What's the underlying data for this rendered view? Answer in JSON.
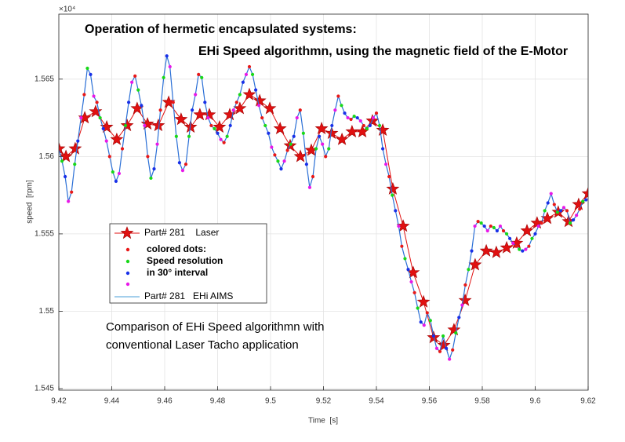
{
  "chart_data": {
    "type": "line",
    "title": "Operation of hermetic encapsulated systems:",
    "subtitle": "EHi Speed algorithmn, using the magnetic field of the E-Motor",
    "annotation": [
      "Comparison of EHi Speed algorithmn with",
      "conventional Laser Tacho application"
    ],
    "x_label": "Time  [s]",
    "y_label": "speed  [rpm]",
    "y_exponent": "×10⁴",
    "xlim": [
      9.42,
      9.62
    ],
    "xticks": [
      9.42,
      9.44,
      9.46,
      9.48,
      9.5,
      9.52,
      9.54,
      9.56,
      9.58,
      9.6,
      9.62
    ],
    "ylim": [
      1.5449,
      1.5692
    ],
    "yticks": [
      1.545,
      1.55,
      1.555,
      1.56,
      1.565
    ],
    "grid": true,
    "legend": "west",
    "legend_note": [
      "colored dots:",
      "Speed resolution",
      "in 30° interval"
    ],
    "series": [
      {
        "name": "Part# 281    Laser",
        "color": "#e01010",
        "marker": "star",
        "x": [
          9.42,
          9.4227,
          9.4262,
          9.4298,
          9.4339,
          9.4381,
          9.4419,
          9.4458,
          9.4496,
          9.4535,
          9.4576,
          9.4615,
          9.4662,
          9.4698,
          9.4733,
          9.4769,
          9.4807,
          9.4846,
          9.4884,
          9.492,
          9.4959,
          9.4997,
          9.5036,
          9.5074,
          9.5113,
          9.5154,
          9.5193,
          9.5231,
          9.527,
          9.5308,
          9.5347,
          9.5385,
          9.5424,
          9.5462,
          9.5501,
          9.5539,
          9.5578,
          9.5616,
          9.5655,
          9.5693,
          9.5735,
          9.5773,
          9.5815,
          9.5853,
          9.5892,
          9.593,
          9.5969,
          9.6007,
          9.6046,
          9.6087,
          9.6126,
          9.6164,
          9.62
        ],
        "values": [
          1.5605,
          1.56,
          1.5605,
          1.5625,
          1.5629,
          1.5619,
          1.5611,
          1.562,
          1.5631,
          1.5621,
          1.562,
          1.5635,
          1.5624,
          1.5619,
          1.5627,
          1.5627,
          1.5619,
          1.5627,
          1.5631,
          1.564,
          1.5636,
          1.5631,
          1.5618,
          1.5607,
          1.56,
          1.5604,
          1.5618,
          1.5615,
          1.5611,
          1.5616,
          1.5616,
          1.5623,
          1.5617,
          1.5579,
          1.5555,
          1.5525,
          1.5506,
          1.5483,
          1.5478,
          1.5488,
          1.5507,
          1.553,
          1.5539,
          1.5538,
          1.5541,
          1.5544,
          1.5552,
          1.5557,
          1.556,
          1.5564,
          1.5558,
          1.5569,
          1.5576
        ]
      },
      {
        "name": "Part# 281   EHi AIMS",
        "color": "#2a6fd6",
        "legend_color": "#4a9fd8",
        "marker": "dot",
        "dot_colors": [
          "#e81818",
          "#18d818",
          "#1830e8",
          "#e818e8"
        ],
        "x": [
          9.42,
          9.4212,
          9.4224,
          9.4236,
          9.4248,
          9.426,
          9.4272,
          9.4284,
          9.4296,
          9.4308,
          9.432,
          9.4332,
          9.4344,
          9.4356,
          9.4368,
          9.438,
          9.4392,
          9.4404,
          9.4416,
          9.4428,
          9.444,
          9.4452,
          9.4464,
          9.4476,
          9.4488,
          9.45,
          9.4512,
          9.4524,
          9.4536,
          9.4548,
          9.456,
          9.4572,
          9.4584,
          9.4596,
          9.4608,
          9.462,
          9.4632,
          9.4644,
          9.4656,
          9.4668,
          9.468,
          9.4692,
          9.4704,
          9.4716,
          9.4728,
          9.474,
          9.4752,
          9.4764,
          9.4776,
          9.4788,
          9.48,
          9.4812,
          9.4824,
          9.4836,
          9.4848,
          9.486,
          9.4872,
          9.4884,
          9.4896,
          9.4908,
          9.492,
          9.4932,
          9.4944,
          9.4956,
          9.4968,
          9.498,
          9.4992,
          9.5004,
          9.5016,
          9.5028,
          9.504,
          9.5052,
          9.5064,
          9.5076,
          9.5088,
          9.51,
          9.5112,
          9.5124,
          9.5136,
          9.5148,
          9.516,
          9.5172,
          9.5184,
          9.5196,
          9.5208,
          9.522,
          9.5232,
          9.5244,
          9.5256,
          9.5268,
          9.528,
          9.5292,
          9.5304,
          9.5316,
          9.5328,
          9.534,
          9.5352,
          9.5364,
          9.5376,
          9.5388,
          9.54,
          9.5412,
          9.5424,
          9.5436,
          9.5448,
          9.546,
          9.5472,
          9.5484,
          9.5496,
          9.5508,
          9.552,
          9.5532,
          9.5544,
          9.5556,
          9.5568,
          9.558,
          9.5592,
          9.5604,
          9.5616,
          9.5628,
          9.564,
          9.5652,
          9.5664,
          9.5676,
          9.5688,
          9.57,
          9.5712,
          9.5724,
          9.5736,
          9.5748,
          9.576,
          9.5772,
          9.5784,
          9.5796,
          9.5808,
          9.582,
          9.5832,
          9.5844,
          9.5856,
          9.5868,
          9.588,
          9.5892,
          9.5904,
          9.5916,
          9.5928,
          9.594,
          9.5952,
          9.5964,
          9.5976,
          9.5988,
          9.6,
          9.6012,
          9.6024,
          9.6036,
          9.6048,
          9.606,
          9.6072,
          9.6084,
          9.6096,
          9.6108,
          9.612,
          9.6132,
          9.6144,
          9.6156,
          9.6168,
          9.618,
          9.6192
        ],
        "values": [
          1.5605,
          1.5597,
          1.5587,
          1.5571,
          1.5577,
          1.5595,
          1.561,
          1.5625,
          1.564,
          1.5657,
          1.5653,
          1.5639,
          1.5635,
          1.5625,
          1.5618,
          1.561,
          1.56,
          1.559,
          1.5584,
          1.5589,
          1.5605,
          1.562,
          1.5635,
          1.5648,
          1.5652,
          1.5643,
          1.5633,
          1.562,
          1.56,
          1.5586,
          1.5592,
          1.5608,
          1.563,
          1.5651,
          1.5665,
          1.5658,
          1.5635,
          1.5613,
          1.5596,
          1.5591,
          1.5595,
          1.5613,
          1.563,
          1.564,
          1.5653,
          1.5651,
          1.5635,
          1.5625,
          1.562,
          1.5618,
          1.5615,
          1.5611,
          1.5609,
          1.5613,
          1.562,
          1.563,
          1.5635,
          1.564,
          1.5648,
          1.5653,
          1.5658,
          1.5653,
          1.5643,
          1.5633,
          1.5625,
          1.562,
          1.5615,
          1.5606,
          1.5601,
          1.5597,
          1.5592,
          1.5597,
          1.5604,
          1.5608,
          1.5613,
          1.5625,
          1.563,
          1.5615,
          1.5595,
          1.558,
          1.5587,
          1.5605,
          1.5613,
          1.5608,
          1.56,
          1.5605,
          1.562,
          1.563,
          1.5639,
          1.5633,
          1.5628,
          1.5625,
          1.5624,
          1.5626,
          1.5625,
          1.5623,
          1.562,
          1.5618,
          1.562,
          1.5625,
          1.5628,
          1.562,
          1.5605,
          1.5595,
          1.5587,
          1.5575,
          1.5565,
          1.5555,
          1.5542,
          1.5534,
          1.5527,
          1.5519,
          1.5512,
          1.5502,
          1.5493,
          1.5491,
          1.5499,
          1.5494,
          1.5484,
          1.5476,
          1.5474,
          1.5484,
          1.5476,
          1.5469,
          1.5475,
          1.5486,
          1.5496,
          1.5504,
          1.5517,
          1.5527,
          1.5539,
          1.5555,
          1.5558,
          1.5557,
          1.5555,
          1.5552,
          1.5555,
          1.5554,
          1.5552,
          1.5555,
          1.5552,
          1.555,
          1.5547,
          1.5544,
          1.5542,
          1.554,
          1.5539,
          1.554,
          1.5542,
          1.5547,
          1.555,
          1.5555,
          1.5557,
          1.5565,
          1.557,
          1.5576,
          1.5569,
          1.5564,
          1.5565,
          1.5567,
          1.5565,
          1.5557,
          1.5559,
          1.5562,
          1.5566,
          1.5571,
          1.5572
        ]
      }
    ]
  }
}
